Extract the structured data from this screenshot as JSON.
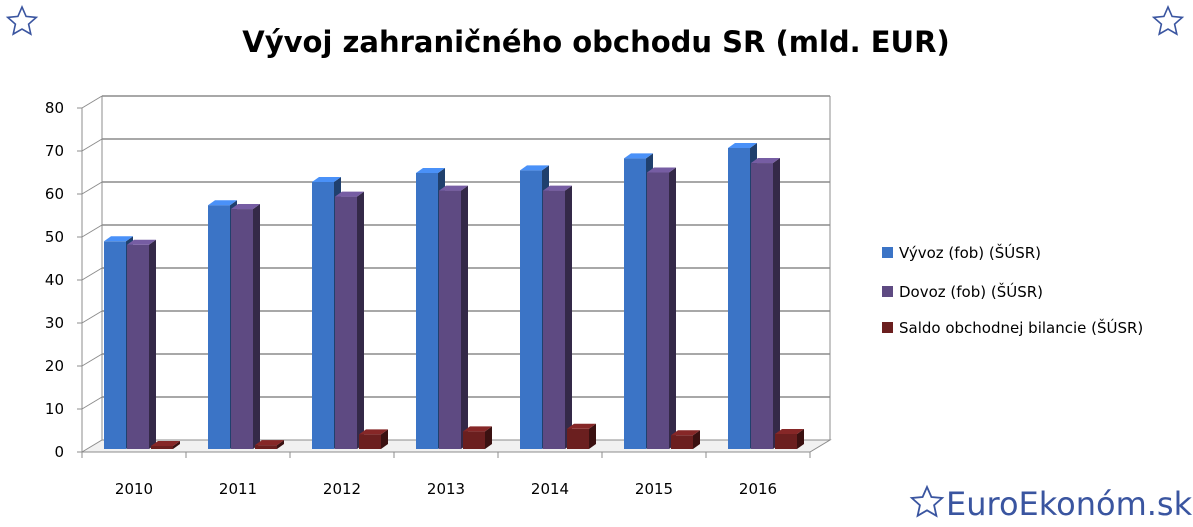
{
  "chart_data": {
    "type": "bar",
    "title": "Vývoj zahraničného obchodu SR (mld. EUR)",
    "categories": [
      "2010",
      "2011",
      "2012",
      "2013",
      "2014",
      "2015",
      "2016"
    ],
    "series": [
      {
        "name": "Vývoz (fob) (ŠÚSR)",
        "color": "#3b74c6",
        "values": [
          48.3,
          56.7,
          62.1,
          64.2,
          64.8,
          67.6,
          70.0
        ]
      },
      {
        "name": "Dovoz (fob)  (ŠÚSR)",
        "color": "#5e4a82",
        "values": [
          47.5,
          55.8,
          58.7,
          60.1,
          60.1,
          64.3,
          66.5
        ]
      },
      {
        "name": "Saldo obchodnej bilancie (ŠÚSR)",
        "color": "#6b1f1f",
        "values": [
          0.7,
          0.9,
          3.4,
          4.1,
          4.7,
          3.2,
          3.5
        ]
      }
    ],
    "ylim": [
      0,
      80
    ],
    "yticks": [
      "0",
      "10",
      "20",
      "30",
      "40",
      "50",
      "60",
      "70",
      "80"
    ],
    "grid": true,
    "legend_position": "right"
  },
  "watermark": "EuroEkonóm.sk",
  "colors": {
    "star": "#3a55a0",
    "grid": "#8c8c8c"
  }
}
